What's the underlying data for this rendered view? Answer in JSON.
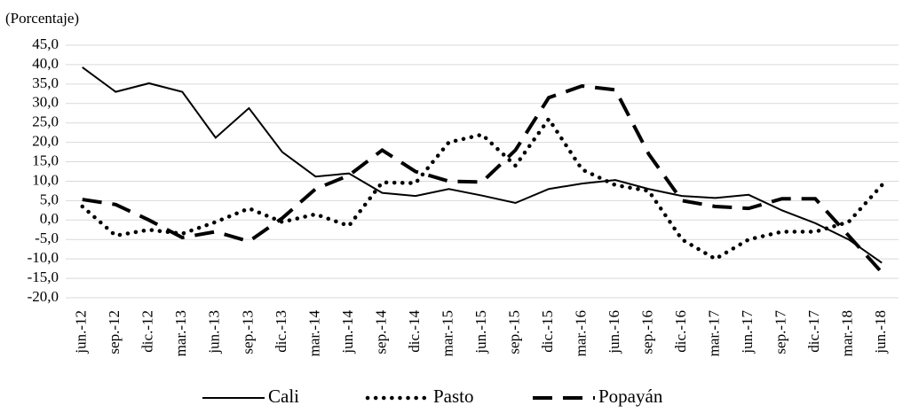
{
  "chart_data": {
    "type": "line",
    "y_label": "(Porcentaje)",
    "categories": [
      "jun.-12",
      "sep.-12",
      "dic.-12",
      "mar.-13",
      "jun.-13",
      "sep.-13",
      "dic.-13",
      "mar.-14",
      "jun.-14",
      "sep.-14",
      "dic.-14",
      "mar.-15",
      "jun.-15",
      "sep.-15",
      "dic.-15",
      "mar.-16",
      "jun.-16",
      "sep.-16",
      "dic.-16",
      "mar.-17",
      "jun.-17",
      "sep.-17",
      "dic.-17",
      "mar.-18",
      "jun.-18"
    ],
    "series": [
      {
        "name": "Cali",
        "color": "#000000",
        "style": "solid",
        "values": [
          39.3,
          33,
          35.2,
          33,
          21.2,
          28.8,
          17.5,
          11.2,
          12,
          7,
          6.2,
          8,
          6.3,
          4.4,
          8,
          9.4,
          10.3,
          8,
          6.2,
          5.7,
          6.5,
          2.5,
          -0.8,
          -5,
          -11
        ]
      },
      {
        "name": "Pasto",
        "color": "#000000",
        "style": "dotted",
        "values": [
          3.5,
          -4,
          -2.5,
          -3.5,
          -0.5,
          3,
          -0.5,
          1.5,
          -1.5,
          9.7,
          9.5,
          20,
          22,
          14,
          26,
          13,
          9,
          7.5,
          -5,
          -10,
          -5,
          -3,
          -3,
          -0.5,
          9
        ]
      },
      {
        "name": "Popayán",
        "color": "#000000",
        "style": "dashed",
        "values": [
          5.3,
          4,
          0,
          -4.5,
          -3,
          -5.5,
          0.5,
          8,
          11.5,
          18,
          12.5,
          10,
          9.8,
          18,
          31.5,
          34.5,
          33.5,
          17,
          5,
          3.5,
          3,
          5.5,
          5.5,
          -4,
          -13.5
        ]
      }
    ],
    "ylim": [
      -20,
      45
    ],
    "yticks": [
      {
        "value": 45,
        "label": "45,0"
      },
      {
        "value": 40,
        "label": "40,0"
      },
      {
        "value": 35,
        "label": "35,0"
      },
      {
        "value": 30,
        "label": "30,0"
      },
      {
        "value": 25,
        "label": "25,0"
      },
      {
        "value": 20,
        "label": "20,0"
      },
      {
        "value": 15,
        "label": "15,0"
      },
      {
        "value": 10,
        "label": "10,0"
      },
      {
        "value": 5,
        "label": "5,0"
      },
      {
        "value": 0,
        "label": "0,0"
      },
      {
        "value": -5,
        "label": "-5,0"
      },
      {
        "value": -10,
        "label": "-10,0"
      },
      {
        "value": -15,
        "label": "-15,0"
      },
      {
        "value": -20,
        "label": "-20,0"
      }
    ],
    "grid": true,
    "legend": "bottom"
  }
}
